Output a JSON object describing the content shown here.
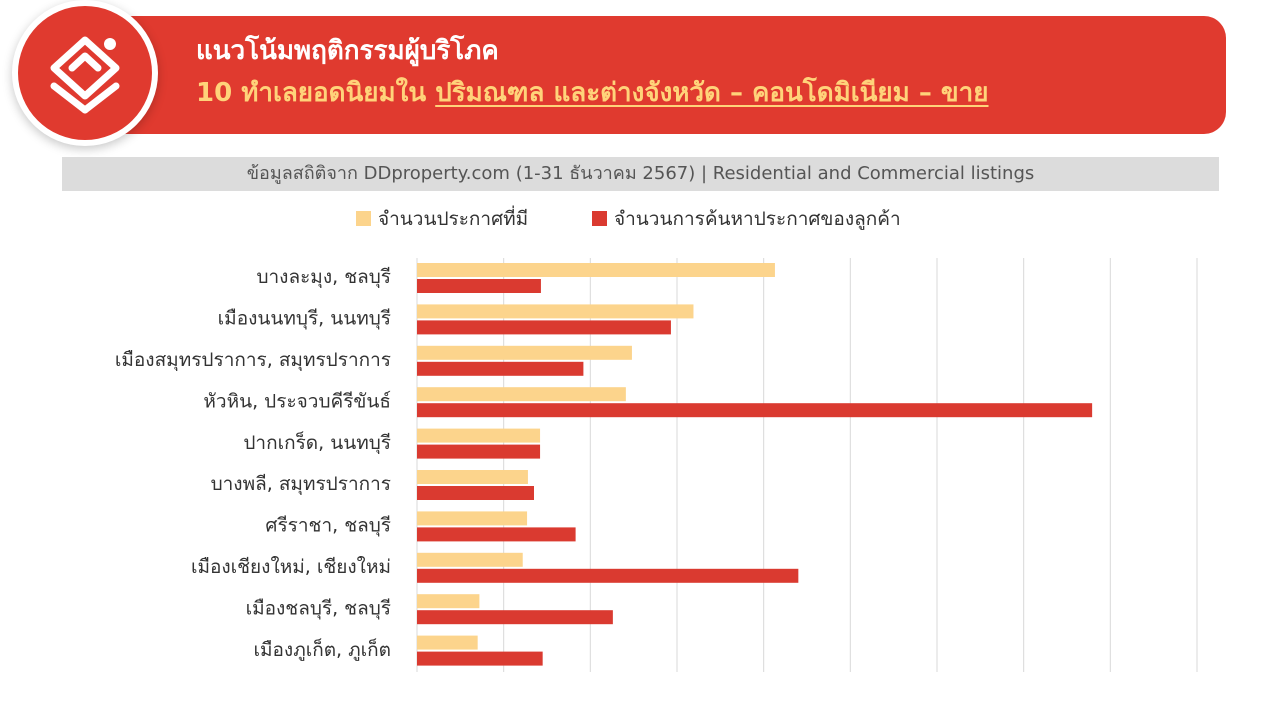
{
  "header": {
    "title": "แนวโน้มพฤติกรรมผู้บริโภค",
    "subtitle_prefix": "10 ทำเลยอดนิยมใน ",
    "subtitle_highlight": "ปริมณฑล และต่างจังหวัด – คอนโดมิเนียม – ขาย",
    "logo_icon": "house-stack-icon"
  },
  "source_note": "ข้อมูลสถิติจาก DDproperty.com (1-31 ธันวาคม 2567) | Residential and Commercial listings",
  "colors": {
    "brand_red": "#e03a2f",
    "title_highlight": "#ffd37a",
    "listings_bar": "#fcd48c",
    "searches_bar": "#da3a30",
    "gridline": "#d9d9d9"
  },
  "chart_data": {
    "type": "bar",
    "orientation": "horizontal",
    "grid": true,
    "legend_position": "top",
    "categories": [
      "บางละมุง, ชลบุรี",
      "เมืองนนทบุรี, นนทบุรี",
      "เมืองสมุทรปราการ, สมุทรปราการ",
      "หัวหิน, ประจวบคีรีขันธ์",
      "ปากเกร็ด, นนทบุรี",
      "บางพลี, สมุทรปราการ",
      "ศรีราชา, ชลบุรี",
      "เมืองเชียงใหม่, เชียงใหม่",
      "เมืองชลบุรี, ชลบุรี",
      "เมืองภูเก็ต, ภูเก็ต"
    ],
    "series": [
      {
        "name": "จำนวนประกาศที่มี",
        "values": [
          4.13,
          3.19,
          2.48,
          2.41,
          1.42,
          1.28,
          1.27,
          1.22,
          0.72,
          0.7
        ]
      },
      {
        "name": "จำนวนการค้นหาประกาศของลูกค้า",
        "values": [
          1.43,
          2.93,
          1.92,
          7.79,
          1.42,
          1.35,
          1.83,
          4.4,
          2.26,
          1.45
        ]
      }
    ],
    "xlim": [
      0,
      9
    ],
    "x_gridlines": 9
  }
}
